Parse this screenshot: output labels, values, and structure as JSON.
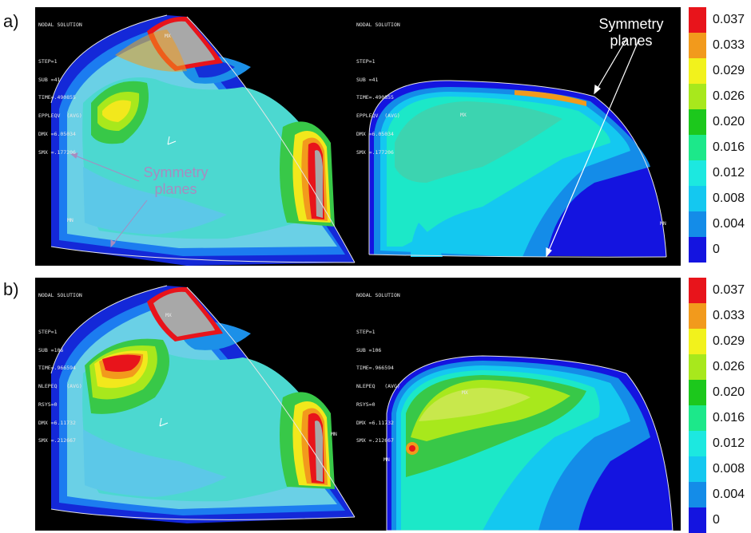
{
  "panels": [
    {
      "label": "a)",
      "left_text": [
        "NODAL SOLUTION",
        "",
        "STEP=1",
        "SUB =41",
        "TIME=.490855",
        "EPPLEQV  (AVG)",
        "DMX =6.05034",
        "SMX =.177206"
      ],
      "right_text": [
        "NODAL SOLUTION",
        "",
        "STEP=1",
        "SUB =41",
        "TIME=.490855",
        "EPPLEQV  (AVG)",
        "DMX =6.05034",
        "SMX =.177206"
      ],
      "annotations": {
        "symmetry_left": "Symmetry planes",
        "symmetry_right": "Symmetry planes",
        "mx": "MX",
        "mn": "MN"
      }
    },
    {
      "label": "b)",
      "left_text": [
        "NODAL SOLUTION",
        "",
        "STEP=1",
        "SUB =106",
        "TIME=.966594",
        "NLEPEQ   (AVG)",
        "RSYS=0",
        "DMX =6.11732",
        "SMX =.212667"
      ],
      "right_text": [
        "NODAL SOLUTION",
        "",
        "STEP=1",
        "SUB =106",
        "TIME=.966594",
        "NLEPEQ   (AVG)",
        "RSYS=0",
        "DMX =6.11732",
        "SMX =.212667"
      ],
      "annotations": {
        "mx": "MX",
        "mn": "MN"
      }
    }
  ],
  "legend": {
    "labels": [
      "0.037",
      "0.033",
      "0.029",
      "0.026",
      "0.020",
      "0.016",
      "0.012",
      "0.008",
      "0.004",
      "0"
    ],
    "colors": [
      "#e8141b",
      "#f29a1c",
      "#f2f21c",
      "#a8e81c",
      "#1cc81c",
      "#1ce88a",
      "#1ce8e0",
      "#14c8f0",
      "#148ce8",
      "#1414e0"
    ]
  },
  "colors": {
    "panel_bg": "#000000",
    "annotation_white": "#ffffff",
    "annotation_violet": "#a68cc0"
  }
}
